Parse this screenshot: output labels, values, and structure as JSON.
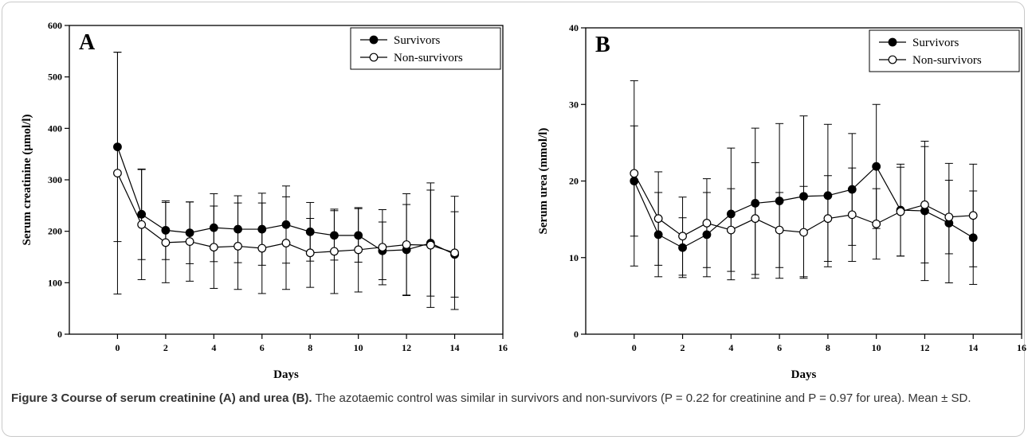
{
  "chart_data": [
    {
      "type": "line",
      "panel_label": "A",
      "xlabel": "Days",
      "ylabel": "Serum creatinine (µmol/l)",
      "xlim": [
        -2,
        16
      ],
      "ylim": [
        0,
        600
      ],
      "xticks": [
        0,
        2,
        4,
        6,
        8,
        10,
        12,
        14,
        16
      ],
      "yticks": [
        0,
        100,
        200,
        300,
        400,
        500,
        600
      ],
      "grid": false,
      "legend": "top-right",
      "x": [
        0,
        1,
        2,
        3,
        4,
        5,
        6,
        7,
        8,
        9,
        10,
        11,
        12,
        13,
        14
      ],
      "series": [
        {
          "name": "Survivors",
          "marker": "filled-circle",
          "values": [
            364,
            233,
            202,
            197,
            207,
            204,
            204,
            213,
            199,
            192,
            192,
            162,
            164,
            177,
            155
          ],
          "sd": [
            184,
            88,
            57,
            60,
            66,
            65,
            70,
            75,
            57,
            48,
            52,
            56,
            88,
            103,
            83
          ]
        },
        {
          "name": "Non-survivors",
          "marker": "open-circle",
          "values": [
            313,
            213,
            178,
            180,
            169,
            171,
            167,
            177,
            158,
            161,
            164,
            169,
            174,
            173,
            158
          ],
          "sd": [
            235,
            107,
            78,
            77,
            80,
            84,
            88,
            90,
            67,
            82,
            82,
            73,
            99,
            121,
            110
          ]
        }
      ]
    },
    {
      "type": "line",
      "panel_label": "B",
      "xlabel": "Days",
      "ylabel": "Serum urea (mmol/l)",
      "xlim": [
        -2,
        16
      ],
      "ylim": [
        0,
        40
      ],
      "xticks": [
        0,
        2,
        4,
        6,
        8,
        10,
        12,
        14,
        16
      ],
      "yticks": [
        0,
        10,
        20,
        30,
        40
      ],
      "grid": false,
      "legend": "top-right",
      "x": [
        0,
        1,
        2,
        3,
        4,
        5,
        6,
        7,
        8,
        9,
        10,
        11,
        12,
        13,
        14
      ],
      "series": [
        {
          "name": "Survivors",
          "marker": "filled-circle",
          "values": [
            20,
            13,
            11.3,
            13,
            15.7,
            17.1,
            17.4,
            18,
            18.1,
            18.9,
            21.9,
            16.2,
            16.1,
            14.5,
            12.6
          ],
          "sd": [
            7.2,
            5.5,
            3.9,
            5.5,
            8.6,
            9.8,
            10.1,
            10.5,
            9.3,
            7.3,
            8.1,
            6,
            9.1,
            7.8,
            6.1
          ]
        },
        {
          "name": "Non-survivors",
          "marker": "open-circle",
          "values": [
            21,
            15.1,
            12.8,
            14.5,
            13.6,
            15.1,
            13.6,
            13.3,
            15.1,
            15.6,
            14.4,
            16,
            16.9,
            15.3,
            15.5
          ],
          "sd": [
            12.1,
            6.1,
            5.1,
            5.8,
            5.4,
            7.3,
            4.9,
            6,
            5.6,
            6.1,
            4.6,
            5.8,
            7.6,
            4.8,
            6.7
          ]
        }
      ]
    }
  ],
  "caption": {
    "bold": "Figure 3 Course of serum creatinine (A) and urea (B).",
    "text": " The azotaemic control was similar in survivors and non-survivors (P = 0.22 for creatinine and P = 0.97 for urea). Mean ± SD."
  }
}
